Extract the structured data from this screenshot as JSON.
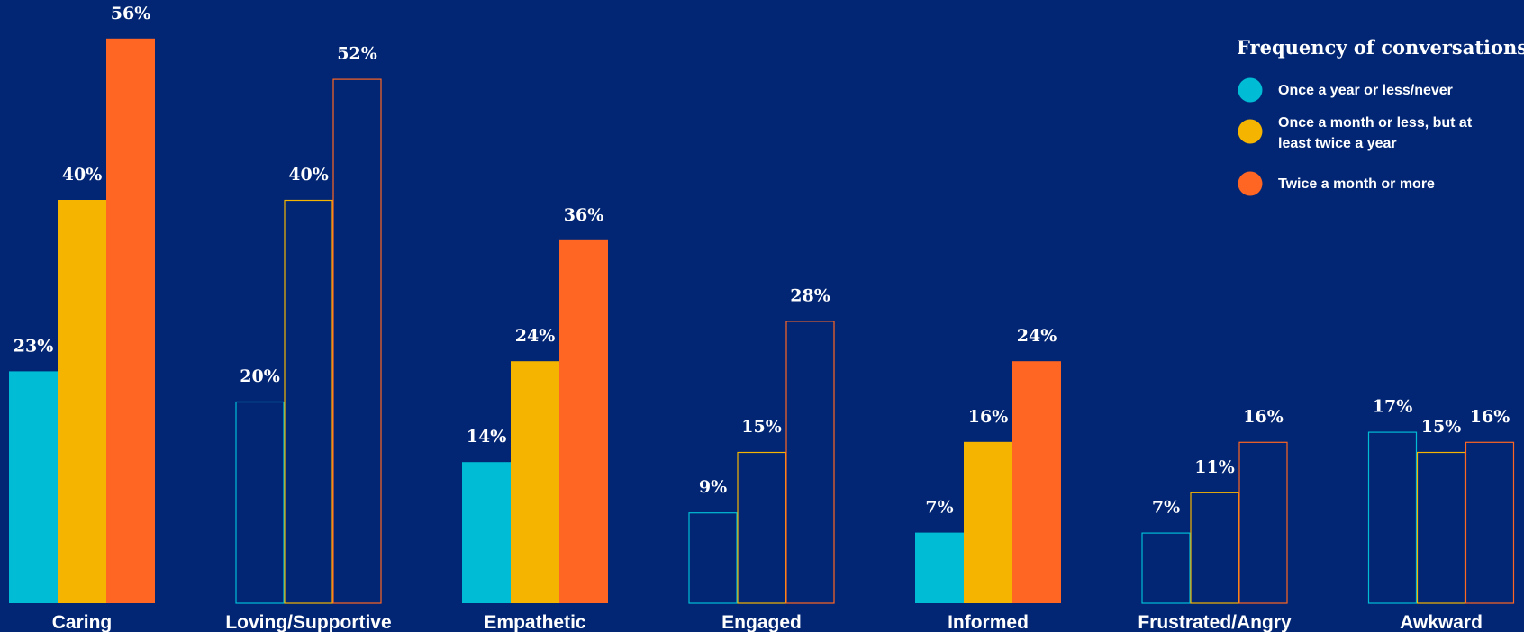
{
  "chart_data": {
    "type": "bar",
    "categories": [
      "Caring",
      "Loving/Supportive",
      "Empathetic",
      "Engaged",
      "Informed",
      "Frustrated/Angry",
      "Awkward"
    ],
    "filled": [
      true,
      false,
      true,
      false,
      true,
      false,
      false
    ],
    "series": [
      {
        "name": "Once a year or less/never",
        "color": "#00BCD4",
        "values": [
          23,
          20,
          14,
          9,
          7,
          7,
          17
        ],
        "labels": [
          "23%",
          "20%",
          "14%",
          "9%",
          "7%",
          "7%",
          "17%"
        ]
      },
      {
        "name": "Once a month or less, but at least twice a year",
        "color": "#F5B400",
        "values": [
          40,
          40,
          24,
          15,
          16,
          11,
          15
        ],
        "labels": [
          "40%",
          "40%",
          "24%",
          "15%",
          "16%",
          "11%",
          "15%"
        ]
      },
      {
        "name": "Twice a month or more",
        "color": "#FF6623",
        "values": [
          56,
          52,
          36,
          28,
          24,
          16,
          16
        ],
        "labels": [
          "56%",
          "52%",
          "36%",
          "28%",
          "24%",
          "16%",
          "16%"
        ]
      }
    ],
    "ylim": [
      0,
      60
    ],
    "grid": false,
    "legend": {
      "title": "Frequency of conversations",
      "placement": "top-right",
      "items": [
        {
          "lines": [
            "Once a year or less/never"
          ]
        },
        {
          "lines": [
            "Once a month or less, but at",
            "least twice a year"
          ]
        },
        {
          "lines": [
            "Twice a month or more"
          ]
        }
      ]
    }
  }
}
